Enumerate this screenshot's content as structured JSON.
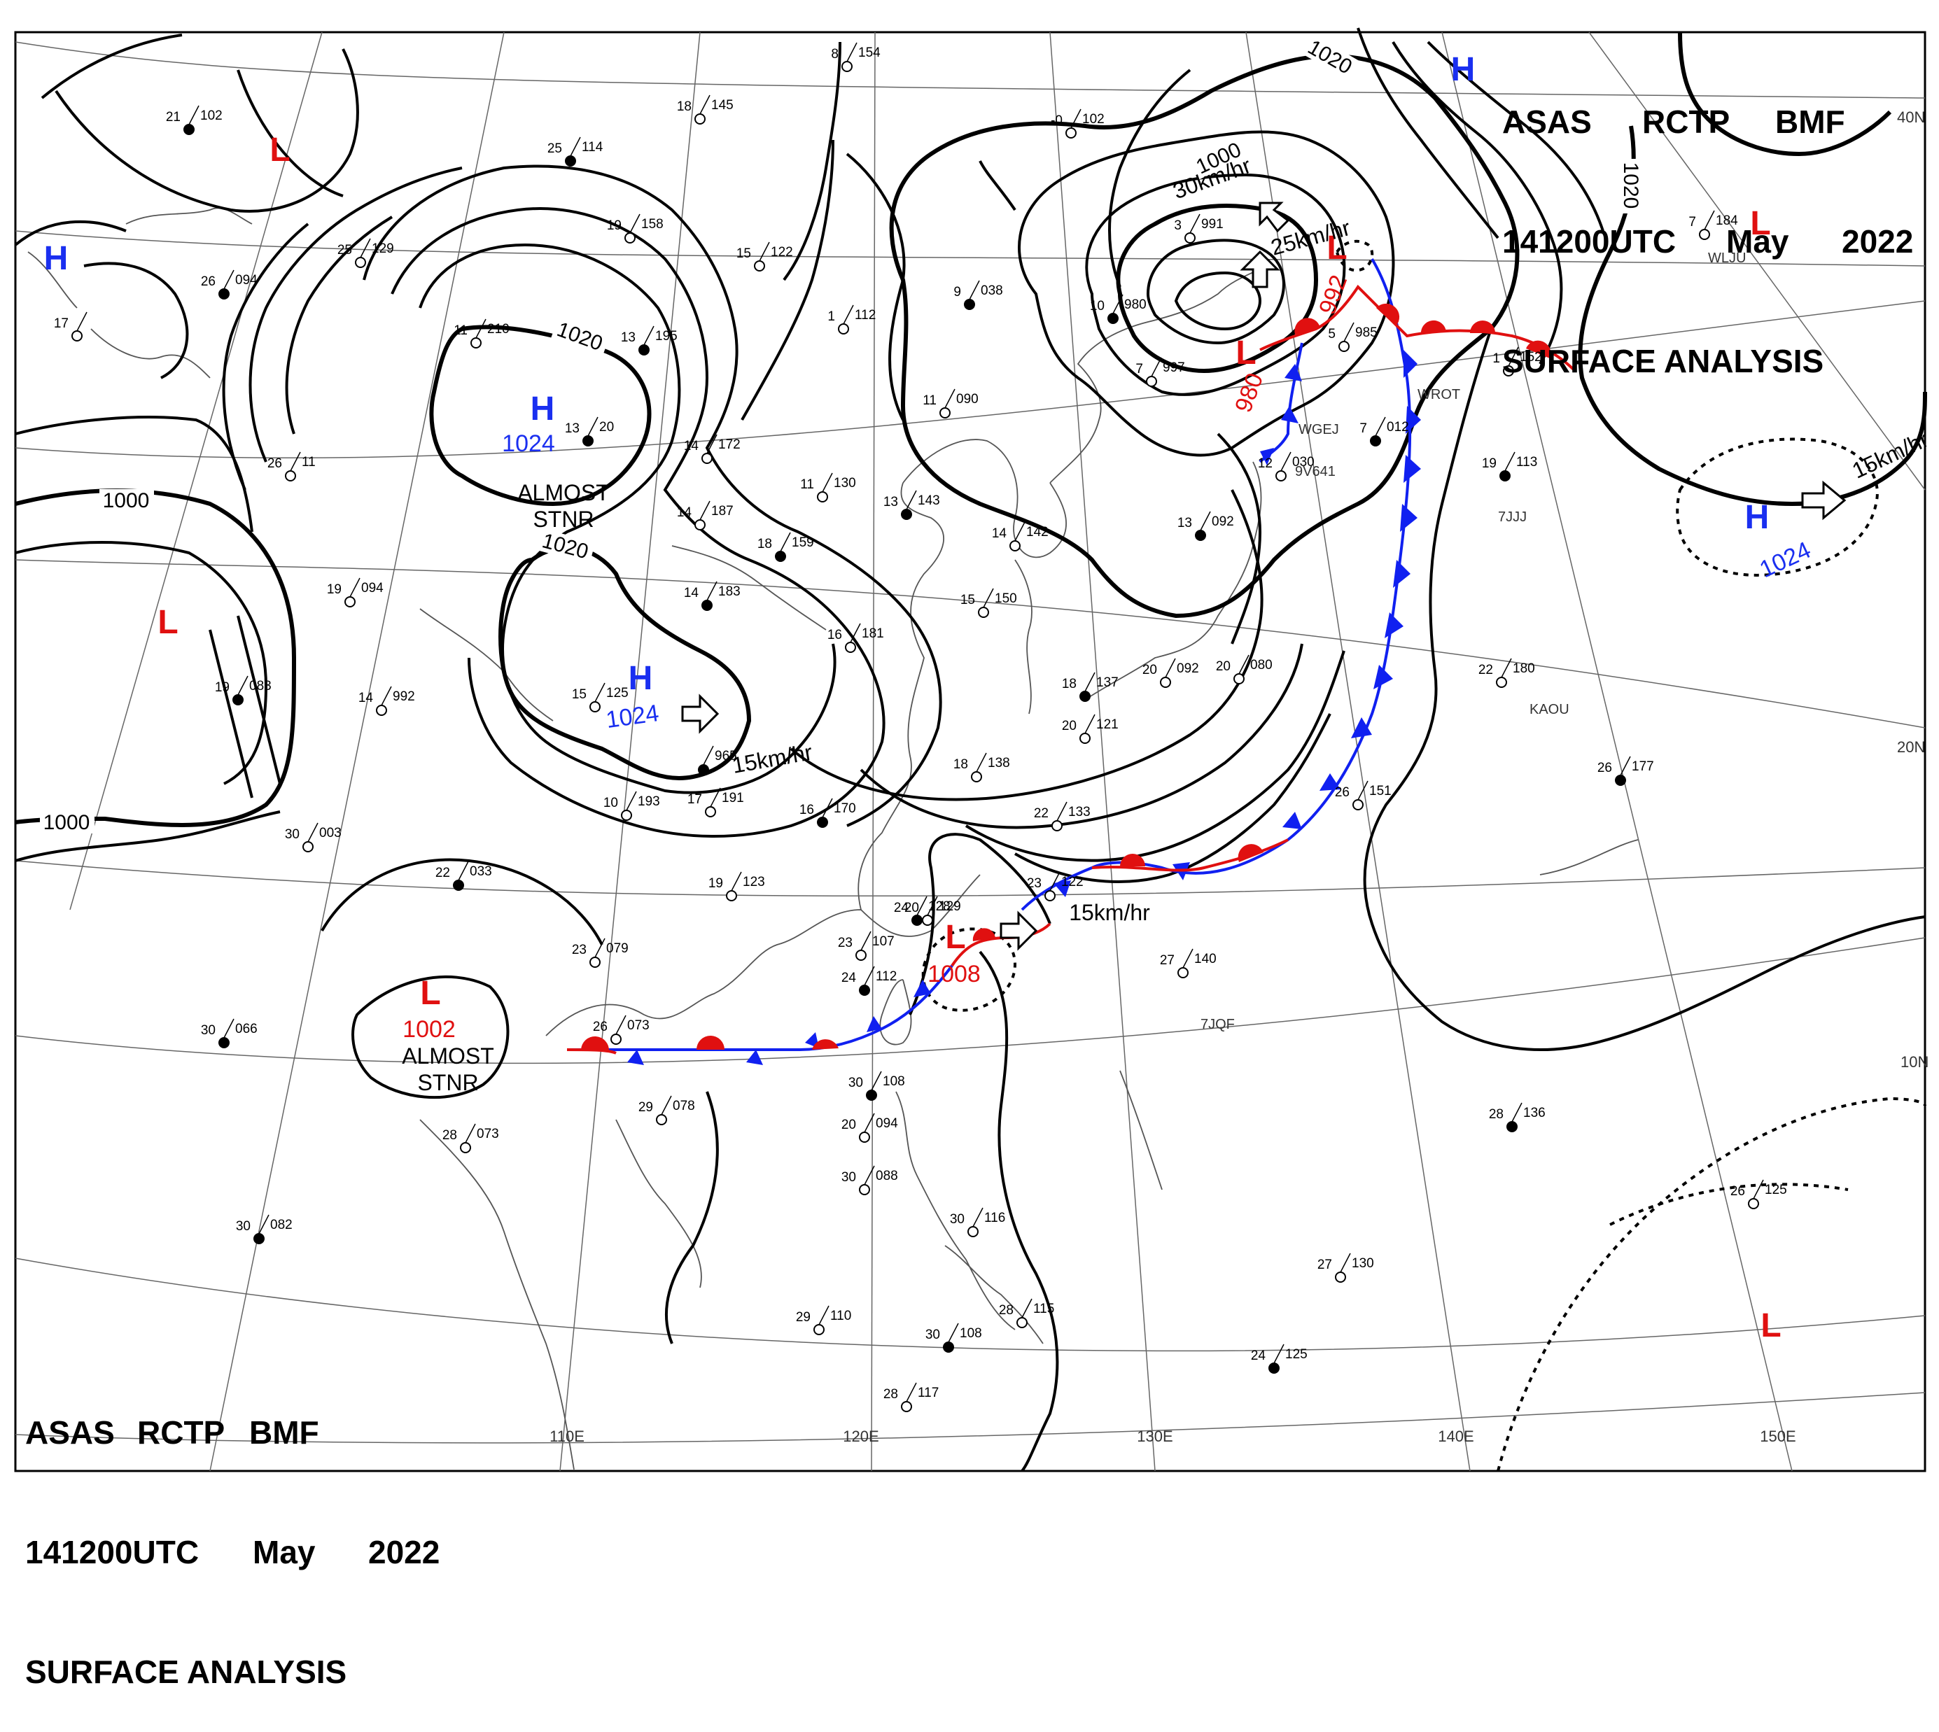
{
  "title": {
    "agency": "ASAS",
    "station": "RCTP",
    "code": "BMF",
    "time": "141200UTC",
    "month": "May",
    "year": "2022",
    "product": "SURFACE ANALYSIS"
  },
  "lat_labels": [
    "40N",
    "20N",
    "10N"
  ],
  "lon_labels": [
    "110E",
    "120E",
    "130E",
    "140E",
    "150E"
  ],
  "isobar_labels": [
    {
      "id": "iso-1020-a",
      "text": "1020"
    },
    {
      "id": "iso-1020-b",
      "text": "1020"
    },
    {
      "id": "iso-1020-c",
      "text": "1020"
    },
    {
      "id": "iso-1020-d",
      "text": "1020"
    },
    {
      "id": "iso-1000-a",
      "text": "1000"
    },
    {
      "id": "iso-1000-b",
      "text": "1000"
    },
    {
      "id": "iso-1000-c",
      "text": "1000"
    }
  ],
  "pressure_centers": [
    {
      "id": "h-northwest",
      "type": "H",
      "value": ""
    },
    {
      "id": "l-north",
      "type": "L",
      "value": ""
    },
    {
      "id": "h-mongolia",
      "type": "H",
      "value": "1024"
    },
    {
      "id": "l-west",
      "type": "L",
      "value": ""
    },
    {
      "id": "h-china",
      "type": "H",
      "value": "1024"
    },
    {
      "id": "l-southchina",
      "type": "L",
      "value": "1002"
    },
    {
      "id": "l-taiwan",
      "type": "L",
      "value": "1008"
    },
    {
      "id": "l-korea",
      "type": "L",
      "value": "980"
    },
    {
      "id": "l-japan-sea",
      "type": "L",
      "value": "992"
    },
    {
      "id": "h-north",
      "type": "H",
      "value": ""
    },
    {
      "id": "l-northeast",
      "type": "L",
      "value": ""
    },
    {
      "id": "h-pacific",
      "type": "H",
      "value": "1024"
    },
    {
      "id": "l-southeast",
      "type": "L",
      "value": ""
    }
  ],
  "annotations": [
    {
      "id": "almost-stnr-1",
      "text": "ALMOST\nSTNR"
    },
    {
      "id": "almost-stnr-2",
      "text": "ALMOST\nSTNR"
    },
    {
      "id": "move-china",
      "text": "15km/hr"
    },
    {
      "id": "move-taiwan",
      "text": "15km/hr"
    },
    {
      "id": "move-korea-1",
      "text": "30km/hr"
    },
    {
      "id": "move-korea-2",
      "text": "25km/hr"
    },
    {
      "id": "move-pacific",
      "text": "15km/hr"
    }
  ],
  "station_ids": [
    "WGEJ",
    "9V641",
    "WROT",
    "7JJJ",
    "KAOU",
    "7JQF",
    "WLJU"
  ],
  "station_obs": [
    {
      "t": "21",
      "p": "102"
    },
    {
      "t": "8",
      "p": "154"
    },
    {
      "t": "18",
      "p": "145"
    },
    {
      "t": "25",
      "p": "114"
    },
    {
      "t": "19",
      "p": "158"
    },
    {
      "t": "25",
      "p": "129"
    },
    {
      "t": "26",
      "p": "094"
    },
    {
      "t": "17",
      "p": ""
    },
    {
      "t": "11",
      "p": "210"
    },
    {
      "t": "13",
      "p": "195"
    },
    {
      "t": "15",
      "p": "122"
    },
    {
      "t": "1",
      "p": "112"
    },
    {
      "t": "9",
      "p": "038"
    },
    {
      "t": "-0",
      "p": "102"
    },
    {
      "t": "26",
      "p": "11"
    },
    {
      "t": "13",
      "p": "20"
    },
    {
      "t": "14",
      "p": "172"
    },
    {
      "t": "11",
      "p": "130"
    },
    {
      "t": "13",
      "p": "143"
    },
    {
      "t": "11",
      "p": "090"
    },
    {
      "t": "14",
      "p": "187"
    },
    {
      "t": "18",
      "p": "159"
    },
    {
      "t": "14",
      "p": "142"
    },
    {
      "t": "19",
      "p": "094"
    },
    {
      "t": "14",
      "p": "183"
    },
    {
      "t": "16",
      "p": "181"
    },
    {
      "t": "15",
      "p": "150"
    },
    {
      "t": "19",
      "p": "083"
    },
    {
      "t": "14",
      "p": "992"
    },
    {
      "t": "15",
      "p": "125"
    },
    {
      "t": "",
      "p": "965"
    },
    {
      "t": "17",
      "p": "191"
    },
    {
      "t": "10",
      "p": "193"
    },
    {
      "t": "16",
      "p": "170"
    },
    {
      "t": "22",
      "p": "133"
    },
    {
      "t": "30",
      "p": "003"
    },
    {
      "t": "22",
      "p": "033"
    },
    {
      "t": "19",
      "p": "123"
    },
    {
      "t": "23",
      "p": "122"
    },
    {
      "t": "24",
      "p": "128"
    },
    {
      "t": "20",
      "p": "129"
    },
    {
      "t": "23",
      "p": "107"
    },
    {
      "t": "24",
      "p": "112"
    },
    {
      "t": "23",
      "p": "079"
    },
    {
      "t": "26",
      "p": "073"
    },
    {
      "t": "30",
      "p": "066"
    },
    {
      "t": "29",
      "p": "078"
    },
    {
      "t": "28",
      "p": "073"
    },
    {
      "t": "30",
      "p": "108"
    },
    {
      "t": "20",
      "p": "094"
    },
    {
      "t": "30",
      "p": "088"
    },
    {
      "t": "30",
      "p": "082"
    },
    {
      "t": "30",
      "p": "116"
    },
    {
      "t": "29",
      "p": "110"
    },
    {
      "t": "30",
      "p": "108"
    },
    {
      "t": "28",
      "p": "115"
    },
    {
      "t": "28",
      "p": "117"
    },
    {
      "t": "13",
      "p": "092"
    },
    {
      "t": "20",
      "p": "092"
    },
    {
      "t": "20",
      "p": "080"
    },
    {
      "t": "18",
      "p": "137"
    },
    {
      "t": "20",
      "p": "121"
    },
    {
      "t": "12",
      "p": "030"
    },
    {
      "t": "19",
      "p": "113"
    },
    {
      "t": "1",
      "p": "152"
    },
    {
      "t": "22",
      "p": "180"
    },
    {
      "t": "26",
      "p": "177"
    },
    {
      "t": "26",
      "p": "151"
    },
    {
      "t": "27",
      "p": "140"
    },
    {
      "t": "28",
      "p": "136"
    },
    {
      "t": "26",
      "p": "125"
    },
    {
      "t": "27",
      "p": "130"
    },
    {
      "t": "24",
      "p": "125"
    },
    {
      "t": "7",
      "p": "184"
    },
    {
      "t": "7",
      "p": "997"
    },
    {
      "t": "10",
      "p": "980"
    },
    {
      "t": "3",
      "p": "991"
    },
    {
      "t": "5",
      "p": "985"
    },
    {
      "t": "7",
      "p": "012"
    },
    {
      "t": "18",
      "p": "138"
    }
  ]
}
